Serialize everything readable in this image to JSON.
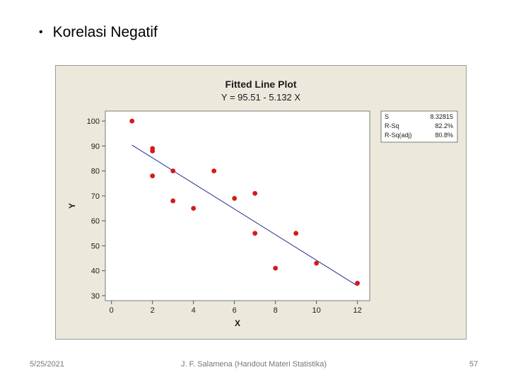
{
  "slide": {
    "bullet": "•",
    "title": "Korelasi Negatif"
  },
  "footer": {
    "date": "5/25/2021",
    "text": "J. F. Salamena (Handout Materi Statistika)",
    "page": "57"
  },
  "chart_data": {
    "type": "scatter",
    "title": "Fitted Line Plot",
    "subtitle": "Y = 95.51 - 5.132 X",
    "xlabel": "X",
    "ylabel": "Y",
    "xlim": [
      -0.3,
      12.6
    ],
    "ylim": [
      28,
      104
    ],
    "xticks": [
      0,
      2,
      4,
      6,
      8,
      10,
      12
    ],
    "yticks": [
      30,
      40,
      50,
      60,
      70,
      80,
      90,
      100
    ],
    "points": [
      {
        "x": 1,
        "y": 100
      },
      {
        "x": 2,
        "y": 89
      },
      {
        "x": 2,
        "y": 88
      },
      {
        "x": 2,
        "y": 78
      },
      {
        "x": 3,
        "y": 80
      },
      {
        "x": 3,
        "y": 68
      },
      {
        "x": 4,
        "y": 65
      },
      {
        "x": 5,
        "y": 80
      },
      {
        "x": 6,
        "y": 69
      },
      {
        "x": 7,
        "y": 71
      },
      {
        "x": 7,
        "y": 55
      },
      {
        "x": 8,
        "y": 41
      },
      {
        "x": 9,
        "y": 55
      },
      {
        "x": 10,
        "y": 43
      },
      {
        "x": 12,
        "y": 35
      }
    ],
    "fit": {
      "intercept": 95.51,
      "slope": -5.132,
      "x_from": 1,
      "x_to": 12
    },
    "stats": [
      {
        "label": "S",
        "value": "8.32815"
      },
      {
        "label": "R-Sq",
        "value": "82.2%"
      },
      {
        "label": "R-Sq(adj)",
        "value": "80.8%"
      }
    ],
    "colors": {
      "point": "#d41a1a",
      "fit_line": "#1f2a8c"
    }
  }
}
